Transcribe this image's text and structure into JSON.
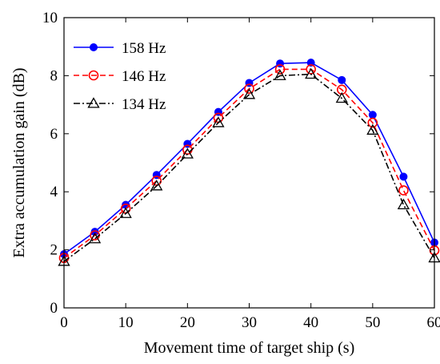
{
  "chart_data": {
    "type": "line",
    "title": "",
    "xlabel": "Movement time of target ship (s)",
    "ylabel": "Extra accumulation gain (dB)",
    "xlim": [
      0,
      60
    ],
    "ylim": [
      0,
      10
    ],
    "x_ticks": [
      0,
      10,
      20,
      30,
      40,
      50,
      60
    ],
    "y_ticks": [
      0,
      2,
      4,
      6,
      8,
      10
    ],
    "grid": false,
    "legend_position": "top-left",
    "x": [
      0,
      5,
      10,
      15,
      20,
      25,
      30,
      35,
      40,
      45,
      50,
      55,
      60
    ],
    "series": [
      {
        "name": "158 Hz",
        "color": "#0000ff",
        "line_style": "solid",
        "marker": "filled-circle",
        "values": [
          1.85,
          2.62,
          3.55,
          4.58,
          5.65,
          6.75,
          7.75,
          8.42,
          8.45,
          7.85,
          6.65,
          4.52,
          2.25
        ]
      },
      {
        "name": "146 Hz",
        "color": "#ff0000",
        "line_style": "dashed",
        "marker": "open-circle",
        "values": [
          1.72,
          2.5,
          3.42,
          4.38,
          5.45,
          6.55,
          7.55,
          8.22,
          8.22,
          7.52,
          6.38,
          4.05,
          1.98
        ]
      },
      {
        "name": "134 Hz",
        "color": "#000000",
        "line_style": "dash-dot",
        "marker": "open-triangle",
        "values": [
          1.6,
          2.38,
          3.25,
          4.2,
          5.3,
          6.38,
          7.35,
          8.0,
          8.05,
          7.22,
          6.12,
          3.55,
          1.72
        ]
      }
    ]
  }
}
